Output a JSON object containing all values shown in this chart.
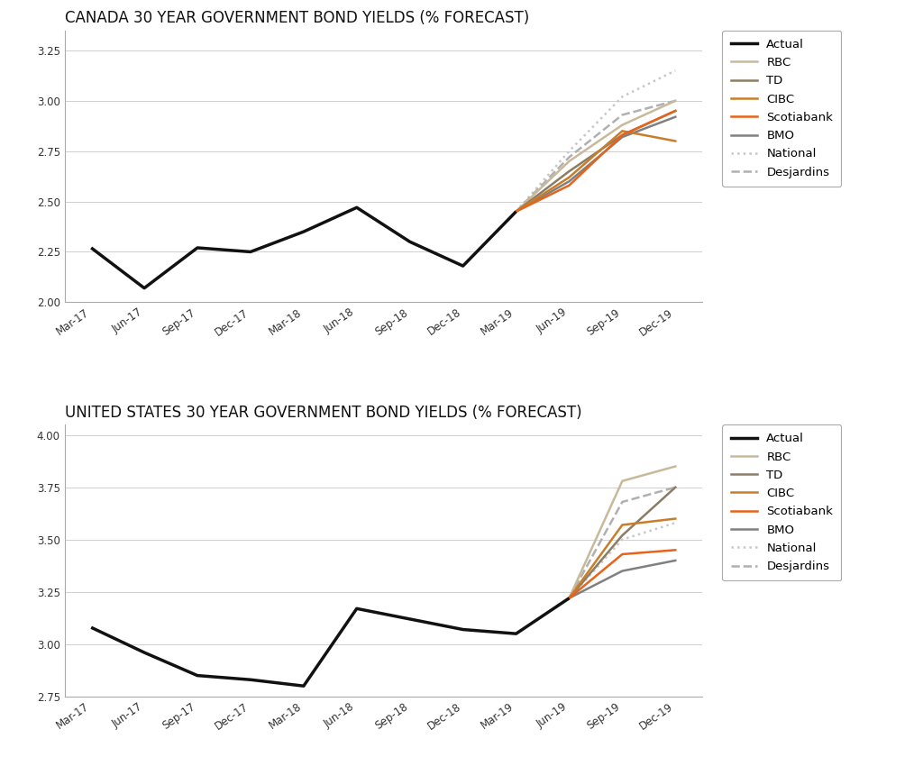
{
  "title1": "CANADA 30 YEAR GOVERNMENT BOND YIELDS (% FORECAST)",
  "title2": "UNITED STATES 30 YEAR GOVERNMENT BOND YIELDS (% FORECAST)",
  "xtick_labels": [
    "Mar-17",
    "Jun-17",
    "Sep-17",
    "Dec-17",
    "Mar-18",
    "Jun-18",
    "Sep-18",
    "Dec-18",
    "Mar-19",
    "Jun-19",
    "Sep-19",
    "Dec-19"
  ],
  "canada": {
    "ylim": [
      2.0,
      3.35
    ],
    "yticks": [
      2.0,
      2.25,
      2.5,
      2.75,
      3.0,
      3.25
    ],
    "actual_x": [
      0,
      1,
      2,
      3,
      4,
      5,
      6,
      7,
      8
    ],
    "actual_y": [
      2.27,
      2.07,
      2.27,
      2.25,
      2.35,
      2.47,
      2.3,
      2.18,
      2.45
    ],
    "rbc": {
      "x": [
        8,
        9,
        10,
        11
      ],
      "y": [
        2.45,
        2.7,
        2.88,
        3.0
      ]
    },
    "td": {
      "x": [
        8,
        9,
        10,
        11
      ],
      "y": [
        2.45,
        2.65,
        2.83,
        2.95
      ]
    },
    "cibc": {
      "x": [
        8,
        9,
        10,
        11
      ],
      "y": [
        2.45,
        2.62,
        2.85,
        2.8
      ]
    },
    "scotiabank": {
      "x": [
        8,
        9,
        10,
        11
      ],
      "y": [
        2.45,
        2.58,
        2.83,
        2.95
      ]
    },
    "bmo": {
      "x": [
        8,
        9,
        10,
        11
      ],
      "y": [
        2.45,
        2.6,
        2.82,
        2.92
      ]
    },
    "national": {
      "x": [
        8,
        9,
        10,
        11
      ],
      "y": [
        2.45,
        2.75,
        3.02,
        3.15
      ]
    },
    "desjardins": {
      "x": [
        8,
        9,
        10,
        11
      ],
      "y": [
        2.45,
        2.72,
        2.93,
        3.0
      ]
    }
  },
  "us": {
    "ylim": [
      2.75,
      4.05
    ],
    "yticks": [
      2.75,
      3.0,
      3.25,
      3.5,
      3.75,
      4.0
    ],
    "actual_x": [
      0,
      1,
      2,
      3,
      4,
      5,
      6,
      7,
      8,
      9
    ],
    "actual_y": [
      3.08,
      2.96,
      2.85,
      2.83,
      2.8,
      3.17,
      3.12,
      3.07,
      3.05,
      3.22
    ],
    "rbc": {
      "x": [
        9,
        10,
        11
      ],
      "y": [
        3.22,
        3.78,
        3.85
      ]
    },
    "td": {
      "x": [
        9,
        10,
        11
      ],
      "y": [
        3.22,
        3.52,
        3.75
      ]
    },
    "cibc": {
      "x": [
        9,
        10,
        11
      ],
      "y": [
        3.22,
        3.57,
        3.6
      ]
    },
    "scotiabank": {
      "x": [
        9,
        10,
        11
      ],
      "y": [
        3.22,
        3.43,
        3.45
      ]
    },
    "bmo": {
      "x": [
        9,
        10,
        11
      ],
      "y": [
        3.22,
        3.35,
        3.4
      ]
    },
    "national": {
      "x": [
        9,
        10,
        11
      ],
      "y": [
        3.22,
        3.5,
        3.58
      ]
    },
    "desjardins": {
      "x": [
        9,
        10,
        11
      ],
      "y": [
        3.22,
        3.68,
        3.75
      ]
    }
  },
  "colors": {
    "actual": "#111111",
    "rbc": "#c8b99a",
    "td": "#8b7d65",
    "cibc": "#c87d2a",
    "scotiabank": "#e8631a",
    "bmo": "#808080",
    "national": "#c8c8c8",
    "desjardins": "#b0b0b0"
  },
  "bg_color": "#ffffff",
  "plot_bg": "#ffffff",
  "grid_color": "#d0d0d0",
  "title_fontsize": 12,
  "tick_fontsize": 8.5,
  "legend_fontsize": 9.5,
  "linewidth": 1.8
}
